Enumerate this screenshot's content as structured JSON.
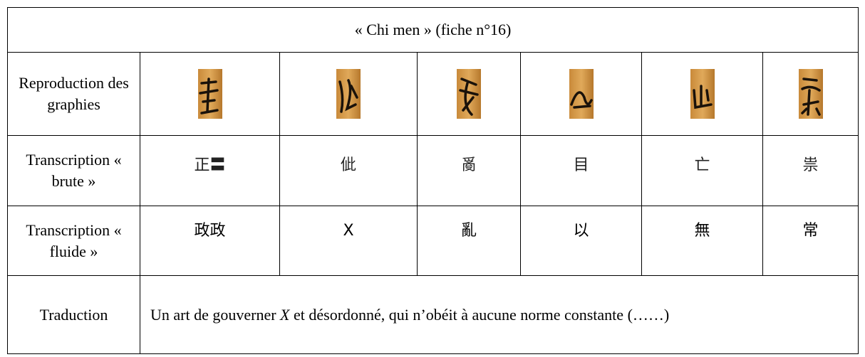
{
  "header": {
    "title": "« Chi men » (fiche n°16)"
  },
  "table": {
    "row_labels": [
      "Reproduction des graphies",
      "Transcription « brute »",
      "Transcription « fluide »",
      "Traduction"
    ],
    "raw": [
      "正〓",
      "佌",
      "𤔔",
      "目",
      "亡",
      "祟"
    ],
    "fluid": [
      "政政",
      "X",
      "亂",
      "以",
      "無",
      "常"
    ],
    "translation": {
      "before": "Un art de gouverner ",
      "italic": "X",
      "after": " et désordonné, qui n’obéit à aucune norme constante (……)"
    }
  }
}
